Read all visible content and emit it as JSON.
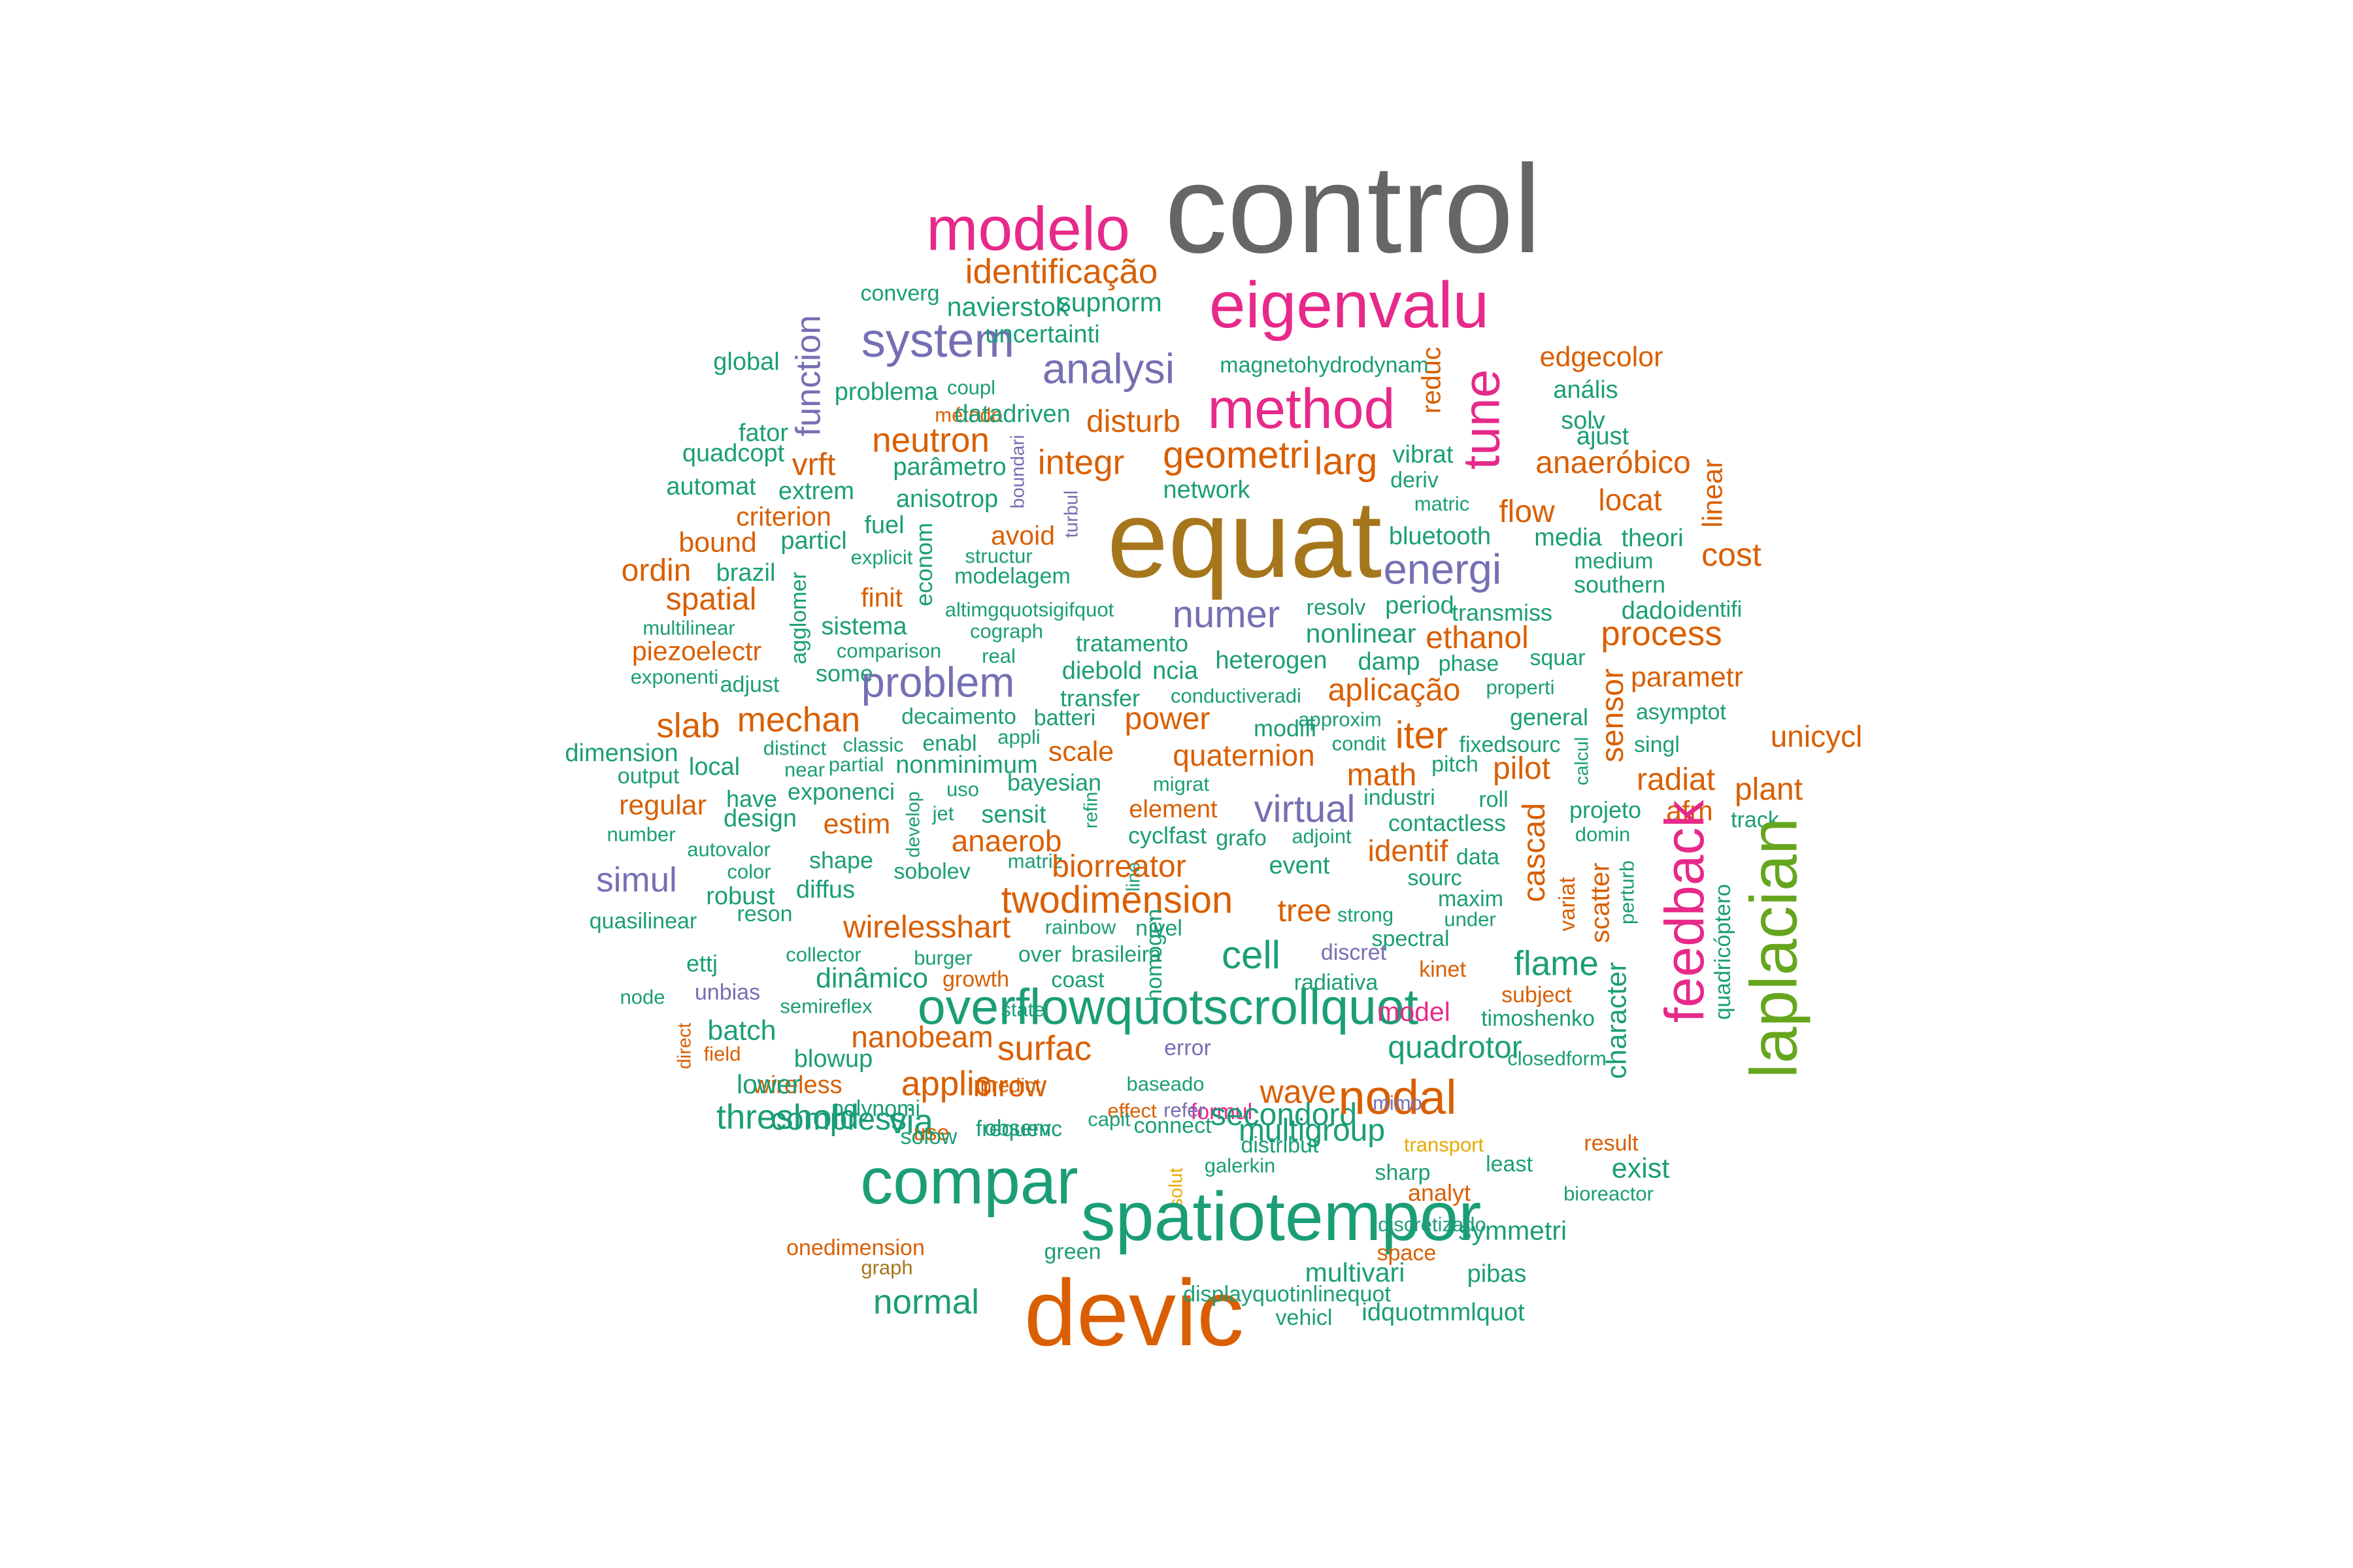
{
  "palette": {
    "teal": "#1b9e77",
    "orange": "#d95f02",
    "purple": "#7570b3",
    "pink": "#e7298a",
    "green": "#66a61e",
    "gold": "#e6ab02",
    "brown": "#a6761d",
    "gray": "#666666"
  },
  "words": [
    {
      "text": "control",
      "color": "gray"
    },
    {
      "text": "modelo",
      "color": "pink"
    },
    {
      "text": "eigenvalu",
      "color": "pink"
    },
    {
      "text": "identificação",
      "color": "orange"
    },
    {
      "text": "converg",
      "color": "teal"
    },
    {
      "text": "navierstok",
      "color": "teal"
    },
    {
      "text": "supnorm",
      "color": "teal"
    },
    {
      "text": "system",
      "color": "purple"
    },
    {
      "text": "uncertainti",
      "color": "teal"
    },
    {
      "text": "function",
      "color": "purple"
    },
    {
      "text": "global",
      "color": "teal"
    },
    {
      "text": "analysi",
      "color": "purple"
    },
    {
      "text": "magnetohydrodynam",
      "color": "teal"
    },
    {
      "text": "reduc",
      "color": "orange"
    },
    {
      "text": "tune",
      "color": "pink"
    },
    {
      "text": "edgecolor",
      "color": "orange"
    },
    {
      "text": "coupl",
      "color": "teal"
    },
    {
      "text": "problema",
      "color": "teal"
    },
    {
      "text": "método",
      "color": "orange"
    },
    {
      "text": "method",
      "color": "pink"
    },
    {
      "text": "anális",
      "color": "teal"
    },
    {
      "text": "datadriven",
      "color": "teal"
    },
    {
      "text": "disturb",
      "color": "orange"
    },
    {
      "text": "solv",
      "color": "teal"
    },
    {
      "text": "fator",
      "color": "teal"
    },
    {
      "text": "neutron",
      "color": "orange"
    },
    {
      "text": "boundari",
      "color": "purple"
    },
    {
      "text": "geometri",
      "color": "orange"
    },
    {
      "text": "ajust",
      "color": "teal"
    },
    {
      "text": "quadcopt",
      "color": "teal"
    },
    {
      "text": "vrft",
      "color": "orange"
    },
    {
      "text": "parâmetro",
      "color": "teal"
    },
    {
      "text": "integr",
      "color": "orange"
    },
    {
      "text": "larg",
      "color": "orange"
    },
    {
      "text": "vibrat",
      "color": "teal"
    },
    {
      "text": "anaeróbico",
      "color": "orange"
    },
    {
      "text": "linear",
      "color": "orange"
    },
    {
      "text": "automat",
      "color": "teal"
    },
    {
      "text": "extrem",
      "color": "teal"
    },
    {
      "text": "anisotrop",
      "color": "teal"
    },
    {
      "text": "turbul",
      "color": "purple"
    },
    {
      "text": "network",
      "color": "teal"
    },
    {
      "text": "deriv",
      "color": "teal"
    },
    {
      "text": "locat",
      "color": "orange"
    },
    {
      "text": "criterion",
      "color": "orange"
    },
    {
      "text": "fuel",
      "color": "teal"
    },
    {
      "text": "equat",
      "color": "brown"
    },
    {
      "text": "matric",
      "color": "teal"
    },
    {
      "text": "flow",
      "color": "orange"
    },
    {
      "text": "bound",
      "color": "orange"
    },
    {
      "text": "particl",
      "color": "teal"
    },
    {
      "text": "econom",
      "color": "teal"
    },
    {
      "text": "avoid",
      "color": "orange"
    },
    {
      "text": "bluetooth",
      "color": "teal"
    },
    {
      "text": "media",
      "color": "teal"
    },
    {
      "text": "theori",
      "color": "teal"
    },
    {
      "text": "ordin",
      "color": "orange"
    },
    {
      "text": "explicit",
      "color": "teal"
    },
    {
      "text": "structur",
      "color": "teal"
    },
    {
      "text": "energi",
      "color": "purple"
    },
    {
      "text": "medium",
      "color": "teal"
    },
    {
      "text": "cost",
      "color": "orange"
    },
    {
      "text": "brazil",
      "color": "teal"
    },
    {
      "text": "modelagem",
      "color": "teal"
    },
    {
      "text": "southern",
      "color": "teal"
    },
    {
      "text": "agglomer",
      "color": "teal"
    },
    {
      "text": "spatial",
      "color": "orange"
    },
    {
      "text": "finit",
      "color": "orange"
    },
    {
      "text": "altimgquotsigifquot",
      "color": "teal"
    },
    {
      "text": "numer",
      "color": "purple"
    },
    {
      "text": "resolv",
      "color": "teal"
    },
    {
      "text": "period",
      "color": "teal"
    },
    {
      "text": "transmiss",
      "color": "teal"
    },
    {
      "text": "dado",
      "color": "teal"
    },
    {
      "text": "identifi",
      "color": "teal"
    },
    {
      "text": "multilinear",
      "color": "teal"
    },
    {
      "text": "sistema",
      "color": "teal"
    },
    {
      "text": "cograph",
      "color": "teal"
    },
    {
      "text": "nonlinear",
      "color": "teal"
    },
    {
      "text": "ethanol",
      "color": "orange"
    },
    {
      "text": "process",
      "color": "orange"
    },
    {
      "text": "piezoelectr",
      "color": "orange"
    },
    {
      "text": "comparison",
      "color": "teal"
    },
    {
      "text": "real",
      "color": "teal"
    },
    {
      "text": "tratamento",
      "color": "teal"
    },
    {
      "text": "heterogen",
      "color": "teal"
    },
    {
      "text": "damp",
      "color": "teal"
    },
    {
      "text": "phase",
      "color": "teal"
    },
    {
      "text": "squar",
      "color": "teal"
    },
    {
      "text": "exponenti",
      "color": "teal"
    },
    {
      "text": "some",
      "color": "teal"
    },
    {
      "text": "problem",
      "color": "purple"
    },
    {
      "text": "diebold",
      "color": "teal"
    },
    {
      "text": "ncia",
      "color": "teal"
    },
    {
      "text": "parametr",
      "color": "orange"
    },
    {
      "text": "adjust",
      "color": "teal"
    },
    {
      "text": "aplicação",
      "color": "orange"
    },
    {
      "text": "properti",
      "color": "teal"
    },
    {
      "text": "transfer",
      "color": "teal"
    },
    {
      "text": "conductiveradi",
      "color": "teal"
    },
    {
      "text": "sensor",
      "color": "orange"
    },
    {
      "text": "asymptot",
      "color": "teal"
    },
    {
      "text": "mechan",
      "color": "orange"
    },
    {
      "text": "slab",
      "color": "orange"
    },
    {
      "text": "decaimento",
      "color": "teal"
    },
    {
      "text": "batteri",
      "color": "teal"
    },
    {
      "text": "power",
      "color": "orange"
    },
    {
      "text": "approxim",
      "color": "teal"
    },
    {
      "text": "general",
      "color": "teal"
    },
    {
      "text": "unicycl",
      "color": "orange"
    },
    {
      "text": "appli",
      "color": "teal"
    },
    {
      "text": "modifi",
      "color": "teal"
    },
    {
      "text": "iter",
      "color": "orange"
    },
    {
      "text": "distinct",
      "color": "teal"
    },
    {
      "text": "classic",
      "color": "teal"
    },
    {
      "text": "enabl",
      "color": "teal"
    },
    {
      "text": "scale",
      "color": "orange"
    },
    {
      "text": "quaternion",
      "color": "orange"
    },
    {
      "text": "condit",
      "color": "teal"
    },
    {
      "text": "fixedsourc",
      "color": "teal"
    },
    {
      "text": "calcul",
      "color": "teal"
    },
    {
      "text": "singl",
      "color": "teal"
    },
    {
      "text": "dimension",
      "color": "teal"
    },
    {
      "text": "local",
      "color": "teal"
    },
    {
      "text": "near",
      "color": "teal"
    },
    {
      "text": "partial",
      "color": "teal"
    },
    {
      "text": "nonminimum",
      "color": "teal"
    },
    {
      "text": "pitch",
      "color": "teal"
    },
    {
      "text": "pilot",
      "color": "orange"
    },
    {
      "text": "output",
      "color": "teal"
    },
    {
      "text": "math",
      "color": "orange"
    },
    {
      "text": "bayesian",
      "color": "teal"
    },
    {
      "text": "migrat",
      "color": "teal"
    },
    {
      "text": "radiat",
      "color": "orange"
    },
    {
      "text": "exponenci",
      "color": "teal"
    },
    {
      "text": "have",
      "color": "teal"
    },
    {
      "text": "uso",
      "color": "teal"
    },
    {
      "text": "virtual",
      "color": "purple"
    },
    {
      "text": "industri",
      "color": "teal"
    },
    {
      "text": "roll",
      "color": "teal"
    },
    {
      "text": "plant",
      "color": "orange"
    },
    {
      "text": "regular",
      "color": "orange"
    },
    {
      "text": "refin",
      "color": "teal"
    },
    {
      "text": "develop",
      "color": "teal"
    },
    {
      "text": "identif",
      "color": "orange"
    },
    {
      "text": "projeto",
      "color": "teal"
    },
    {
      "text": "design",
      "color": "teal"
    },
    {
      "text": "jet",
      "color": "teal"
    },
    {
      "text": "sensit",
      "color": "teal"
    },
    {
      "text": "element",
      "color": "orange"
    },
    {
      "text": "contactless",
      "color": "teal"
    },
    {
      "text": "afm",
      "color": "orange"
    },
    {
      "text": "track",
      "color": "teal"
    },
    {
      "text": "estim",
      "color": "orange"
    },
    {
      "text": "line",
      "color": "teal"
    },
    {
      "text": "adjoint",
      "color": "teal"
    },
    {
      "text": "cascad",
      "color": "orange"
    },
    {
      "text": "domin",
      "color": "teal"
    },
    {
      "text": "number",
      "color": "teal"
    },
    {
      "text": "cyclfast",
      "color": "teal"
    },
    {
      "text": "grafo",
      "color": "teal"
    },
    {
      "text": "anaerob",
      "color": "orange"
    },
    {
      "text": "autovalor",
      "color": "teal"
    },
    {
      "text": "data",
      "color": "teal"
    },
    {
      "text": "simul",
      "color": "purple"
    },
    {
      "text": "shape",
      "color": "teal"
    },
    {
      "text": "matriz",
      "color": "teal"
    },
    {
      "text": "event",
      "color": "teal"
    },
    {
      "text": "feedback",
      "color": "pink"
    },
    {
      "text": "color",
      "color": "teal"
    },
    {
      "text": "sobolev",
      "color": "teal"
    },
    {
      "text": "biorreator",
      "color": "orange"
    },
    {
      "text": "sourc",
      "color": "teal"
    },
    {
      "text": "variat",
      "color": "orange"
    },
    {
      "text": "scatter",
      "color": "orange"
    },
    {
      "text": "perturb",
      "color": "teal"
    },
    {
      "text": "laplacian",
      "color": "green"
    },
    {
      "text": "robust",
      "color": "teal"
    },
    {
      "text": "diffus",
      "color": "teal"
    },
    {
      "text": "twodimension",
      "color": "orange"
    },
    {
      "text": "maxim",
      "color": "teal"
    },
    {
      "text": "quadricóptero",
      "color": "teal"
    },
    {
      "text": "quasilinear",
      "color": "teal"
    },
    {
      "text": "reson",
      "color": "teal"
    },
    {
      "text": "wirelesshart",
      "color": "orange"
    },
    {
      "text": "rainbow",
      "color": "teal"
    },
    {
      "text": "nível",
      "color": "teal"
    },
    {
      "text": "tree",
      "color": "orange"
    },
    {
      "text": "strong",
      "color": "teal"
    },
    {
      "text": "under",
      "color": "teal"
    },
    {
      "text": "spectral",
      "color": "teal"
    },
    {
      "text": "ettj",
      "color": "teal"
    },
    {
      "text": "collector",
      "color": "teal"
    },
    {
      "text": "burger",
      "color": "teal"
    },
    {
      "text": "over",
      "color": "teal"
    },
    {
      "text": "brasileira",
      "color": "teal"
    },
    {
      "text": "cell",
      "color": "teal"
    },
    {
      "text": "discret",
      "color": "purple"
    },
    {
      "text": "flame",
      "color": "teal"
    },
    {
      "text": "kinet",
      "color": "orange"
    },
    {
      "text": "homogen",
      "color": "teal"
    },
    {
      "text": "unbias",
      "color": "purple"
    },
    {
      "text": "dinâmico",
      "color": "teal"
    },
    {
      "text": "growth",
      "color": "orange"
    },
    {
      "text": "coast",
      "color": "teal"
    },
    {
      "text": "radiativa",
      "color": "teal"
    },
    {
      "text": "node",
      "color": "teal"
    },
    {
      "text": "semireflex",
      "color": "teal"
    },
    {
      "text": "state",
      "color": "teal"
    },
    {
      "text": "overflowquotscrollquot",
      "color": "teal"
    },
    {
      "text": "model",
      "color": "pink"
    },
    {
      "text": "subject",
      "color": "orange"
    },
    {
      "text": "character",
      "color": "teal"
    },
    {
      "text": "direct",
      "color": "orange"
    },
    {
      "text": "timoshenko",
      "color": "teal"
    },
    {
      "text": "batch",
      "color": "teal"
    },
    {
      "text": "nanobeam",
      "color": "orange"
    },
    {
      "text": "field",
      "color": "orange"
    },
    {
      "text": "blowup",
      "color": "teal"
    },
    {
      "text": "surfac",
      "color": "orange"
    },
    {
      "text": "error",
      "color": "purple"
    },
    {
      "text": "quadrotor",
      "color": "teal"
    },
    {
      "text": "closedform",
      "color": "teal"
    },
    {
      "text": "wireless",
      "color": "orange"
    },
    {
      "text": "lower",
      "color": "teal"
    },
    {
      "text": "applic",
      "color": "orange"
    },
    {
      "text": "mrow",
      "color": "orange"
    },
    {
      "text": "baseado",
      "color": "teal"
    },
    {
      "text": "wave",
      "color": "orange"
    },
    {
      "text": "threshold",
      "color": "teal"
    },
    {
      "text": "predict",
      "color": "orange"
    },
    {
      "text": "effect",
      "color": "orange"
    },
    {
      "text": "formul",
      "color": "pink"
    },
    {
      "text": "secondord",
      "color": "teal"
    },
    {
      "text": "nodal",
      "color": "orange"
    },
    {
      "text": "refer",
      "color": "purple"
    },
    {
      "text": "mimo",
      "color": "purple"
    },
    {
      "text": "via",
      "color": "teal"
    },
    {
      "text": "compress",
      "color": "teal"
    },
    {
      "text": "polynomi",
      "color": "teal"
    },
    {
      "text": "use",
      "color": "orange"
    },
    {
      "text": "observ",
      "color": "teal"
    },
    {
      "text": "capit",
      "color": "teal"
    },
    {
      "text": "connect",
      "color": "teal"
    },
    {
      "text": "multigroup",
      "color": "teal"
    },
    {
      "text": "solow",
      "color": "teal"
    },
    {
      "text": "frequenc",
      "color": "teal"
    },
    {
      "text": "result",
      "color": "orange"
    },
    {
      "text": "transport",
      "color": "gold"
    },
    {
      "text": "distribut",
      "color": "teal"
    },
    {
      "text": "least",
      "color": "teal"
    },
    {
      "text": "exist",
      "color": "teal"
    },
    {
      "text": "compar",
      "color": "teal"
    },
    {
      "text": "galerkin",
      "color": "teal"
    },
    {
      "text": "solut",
      "color": "gold"
    },
    {
      "text": "sharp",
      "color": "teal"
    },
    {
      "text": "analyt",
      "color": "orange"
    },
    {
      "text": "bioreactor",
      "color": "teal"
    },
    {
      "text": "spatiotempor",
      "color": "teal"
    },
    {
      "text": "discretizado",
      "color": "teal"
    },
    {
      "text": "symmetri",
      "color": "teal"
    },
    {
      "text": "onedimension",
      "color": "orange"
    },
    {
      "text": "green",
      "color": "teal"
    },
    {
      "text": "space",
      "color": "orange"
    },
    {
      "text": "graph",
      "color": "brown"
    },
    {
      "text": "multivari",
      "color": "teal"
    },
    {
      "text": "pibas",
      "color": "teal"
    },
    {
      "text": "normal",
      "color": "teal"
    },
    {
      "text": "devic",
      "color": "orange"
    },
    {
      "text": "displayquotinlinequot",
      "color": "teal"
    },
    {
      "text": "vehicl",
      "color": "teal"
    },
    {
      "text": "idquotmmlquot",
      "color": "teal"
    }
  ]
}
